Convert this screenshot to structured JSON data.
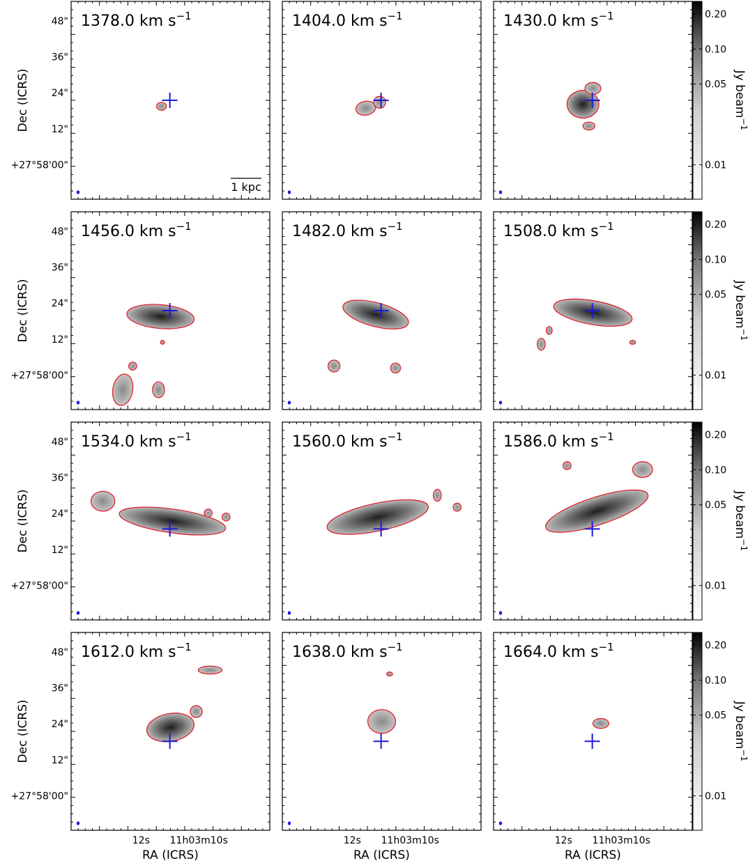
{
  "figure": {
    "ylabel": "Dec (ICRS)",
    "xlabel": "RA (ICRS)",
    "colorbar_label": "Jy beam",
    "colorbar_label_exp": "−1",
    "scalebar_label": "1 kpc",
    "velocity_unit": "km s",
    "velocity_unit_exp": "−1"
  },
  "chart_data": {
    "type": "channel-map",
    "description_units": "velocity km s^-1",
    "y_ticks": [
      "48\"",
      "36\"",
      "24\"",
      "12\"",
      "+27°58'00\""
    ],
    "x_ticks": [
      "12s",
      "11h03m10s"
    ],
    "colorbar_ticks": [
      "0.20",
      "0.10",
      "0.05",
      "0.01"
    ],
    "colorbar_values": [
      0.2,
      0.1,
      0.05,
      0.01
    ],
    "colorbar_range": [
      0.006,
      0.23
    ],
    "colorbar_scale": "log",
    "colors": {
      "contour": "#e0202a",
      "marker": "#1a1ad8",
      "cmap_low": "#ffffff",
      "cmap_high": "#000000"
    },
    "channels": [
      {
        "velocity": "1378.0",
        "row": 0,
        "col": 0
      },
      {
        "velocity": "1404.0",
        "row": 0,
        "col": 1
      },
      {
        "velocity": "1430.0",
        "row": 0,
        "col": 2
      },
      {
        "velocity": "1456.0",
        "row": 1,
        "col": 0
      },
      {
        "velocity": "1482.0",
        "row": 1,
        "col": 1
      },
      {
        "velocity": "1508.0",
        "row": 1,
        "col": 2
      },
      {
        "velocity": "1534.0",
        "row": 2,
        "col": 0
      },
      {
        "velocity": "1560.0",
        "row": 2,
        "col": 1
      },
      {
        "velocity": "1586.0",
        "row": 2,
        "col": 2
      },
      {
        "velocity": "1612.0",
        "row": 3,
        "col": 0
      },
      {
        "velocity": "1638.0",
        "row": 3,
        "col": 1
      },
      {
        "velocity": "1664.0",
        "row": 3,
        "col": 2
      }
    ]
  }
}
